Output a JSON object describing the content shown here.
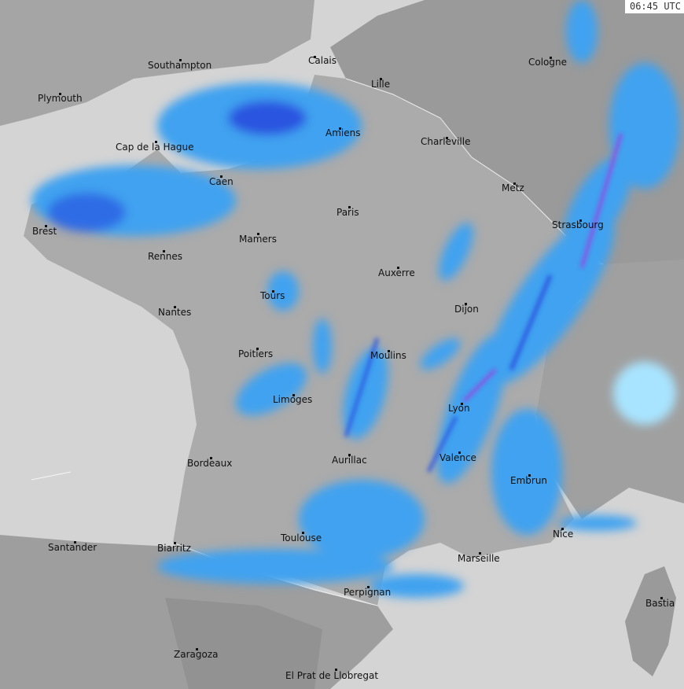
{
  "timestamp": "06:45 UTC",
  "colors": {
    "sea": "#d4d4d4",
    "france_land": "#ababab",
    "neighbor_land": "#9a9a9a",
    "spain_land": "#a2a2a2",
    "rain_light": "#a8e4ff",
    "rain_moderate": "#3fa2f0",
    "rain_heavy": "#2a55e0",
    "rain_extreme": "#b02ae0"
  },
  "cities": [
    "Southampton",
    "Calais",
    "Lille",
    "Cologne",
    "Plymouth",
    "Cap de la Hague",
    "Amiens",
    "Charleville",
    "Caen",
    "Metz",
    "Paris",
    "Strasbourg",
    "Brest",
    "Mamers",
    "Rennes",
    "Auxerre",
    "Tours",
    "Dijon",
    "Nantes",
    "Poitiers",
    "Moulins",
    "Limoges",
    "Lyon",
    "Aurillac",
    "Valence",
    "Bordeaux",
    "Embrun",
    "Toulouse",
    "Nice",
    "Santander",
    "Biarritz",
    "Marseille",
    "Perpignan",
    "Bastia",
    "Zaragoza",
    "El Prat de Llobregat"
  ]
}
